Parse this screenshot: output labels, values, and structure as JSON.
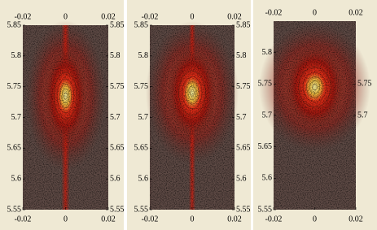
{
  "chart_data": [
    {
      "type": "contour",
      "xlim": [
        -0.02,
        0.02
      ],
      "ylim": [
        5.55,
        5.85
      ],
      "xticks": [
        -0.02,
        0,
        0.02
      ],
      "yticks": [
        5.55,
        5.6,
        5.65,
        5.7,
        5.75,
        5.8,
        5.85
      ],
      "y2ticks": [
        5.55,
        5.6,
        5.65,
        5.7,
        5.75,
        5.8,
        5.85
      ]
    },
    {
      "type": "contour",
      "xlim": [
        -0.02,
        0.02
      ],
      "ylim": [
        5.55,
        5.85
      ],
      "xticks": [
        -0.02,
        0,
        0.02
      ],
      "yticks": [
        5.55,
        5.6,
        5.65,
        5.7,
        5.75,
        5.8,
        5.85
      ],
      "y2ticks": [
        5.55,
        5.6,
        5.65,
        5.7,
        5.75,
        5.8,
        5.85
      ]
    },
    {
      "type": "contour",
      "xlim": [
        -0.02,
        0.02
      ],
      "ylim": [
        5.55,
        5.85
      ],
      "xticks": [
        -0.02,
        0,
        0.02
      ],
      "yticks": [
        5.55,
        5.6,
        5.65,
        5.7,
        5.75,
        5.8
      ],
      "y2ticks": [
        5.7,
        5.75
      ]
    }
  ]
}
